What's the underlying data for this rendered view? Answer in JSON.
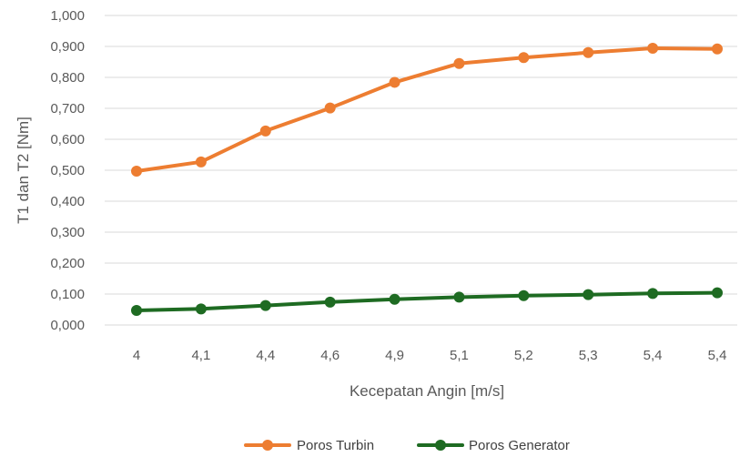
{
  "chart_data": {
    "type": "line",
    "categories": [
      "4",
      "4,1",
      "4,4",
      "4,6",
      "4,9",
      "5,1",
      "5,2",
      "5,3",
      "5,4",
      "5,4"
    ],
    "series": [
      {
        "name": "Poros Turbin",
        "color": "#ed7d31",
        "values": [
          0.497,
          0.527,
          0.627,
          0.701,
          0.784,
          0.845,
          0.864,
          0.88,
          0.894,
          0.892
        ]
      },
      {
        "name": "Poros Generator",
        "color": "#1e6b22",
        "values": [
          0.047,
          0.052,
          0.063,
          0.074,
          0.083,
          0.09,
          0.095,
          0.098,
          0.102,
          0.104
        ]
      }
    ],
    "yticks": [
      "0,000",
      "0,100",
      "0,200",
      "0,300",
      "0,400",
      "0,500",
      "0,600",
      "0,700",
      "0,800",
      "0,900",
      "1,000"
    ],
    "ylim": [
      0,
      1
    ],
    "xlabel": "Kecepatan Angin [m/s]",
    "ylabel": "T1 dan T2 [Nm]",
    "grid": true,
    "legend_position": "bottom"
  }
}
